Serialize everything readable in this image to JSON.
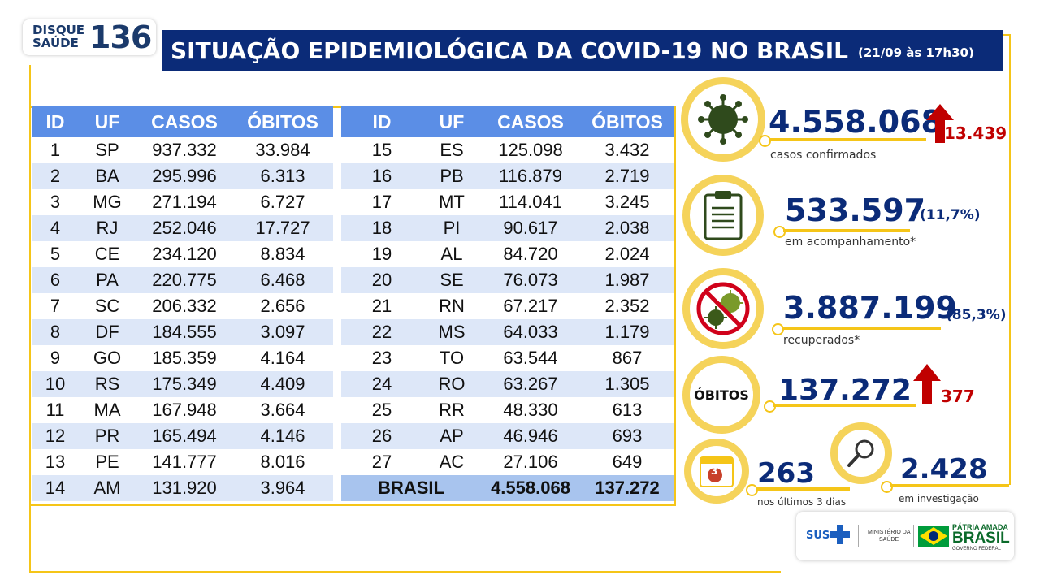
{
  "header": {
    "disque_line1": "DISQUE",
    "disque_line2": "SAÚDE",
    "disque_number": "136",
    "title": "SITUAÇÃO EPIDEMIOLÓGICA DA COVID-19 NO BRASIL",
    "date": "(21/09 às 17h30)"
  },
  "table": {
    "headers": [
      "ID",
      "UF",
      "CASOS",
      "ÓBITOS"
    ],
    "left_rows": [
      [
        "1",
        "SP",
        "937.332",
        "33.984"
      ],
      [
        "2",
        "BA",
        "295.996",
        "6.313"
      ],
      [
        "3",
        "MG",
        "271.194",
        "6.727"
      ],
      [
        "4",
        "RJ",
        "252.046",
        "17.727"
      ],
      [
        "5",
        "CE",
        "234.120",
        "8.834"
      ],
      [
        "6",
        "PA",
        "220.775",
        "6.468"
      ],
      [
        "7",
        "SC",
        "206.332",
        "2.656"
      ],
      [
        "8",
        "DF",
        "184.555",
        "3.097"
      ],
      [
        "9",
        "GO",
        "185.359",
        "4.164"
      ],
      [
        "10",
        "RS",
        "175.349",
        "4.409"
      ],
      [
        "11",
        "MA",
        "167.948",
        "3.664"
      ],
      [
        "12",
        "PR",
        "165.494",
        "4.146"
      ],
      [
        "13",
        "PE",
        "141.777",
        "8.016"
      ],
      [
        "14",
        "AM",
        "131.920",
        "3.964"
      ]
    ],
    "right_rows": [
      [
        "15",
        "ES",
        "125.098",
        "3.432"
      ],
      [
        "16",
        "PB",
        "116.879",
        "2.719"
      ],
      [
        "17",
        "MT",
        "114.041",
        "3.245"
      ],
      [
        "18",
        "PI",
        "90.617",
        "2.038"
      ],
      [
        "19",
        "AL",
        "84.720",
        "2.024"
      ],
      [
        "20",
        "SE",
        "76.073",
        "1.987"
      ],
      [
        "21",
        "RN",
        "67.217",
        "2.352"
      ],
      [
        "22",
        "MS",
        "64.033",
        "1.179"
      ],
      [
        "23",
        "TO",
        "63.544",
        "867"
      ],
      [
        "24",
        "RO",
        "63.267",
        "1.305"
      ],
      [
        "25",
        "RR",
        "48.330",
        "613"
      ],
      [
        "26",
        "AP",
        "46.946",
        "693"
      ],
      [
        "27",
        "AC",
        "27.106",
        "649"
      ]
    ],
    "total": {
      "label": "BRASIL",
      "casos": "4.558.068",
      "obitos": "137.272"
    }
  },
  "stats": {
    "confirmed": {
      "value": "4.558.068",
      "increase": "13.439",
      "label": "casos confirmados"
    },
    "monitoring": {
      "value": "533.597",
      "pct": "(11,7%)",
      "label": "em acompanhamento*"
    },
    "recovered": {
      "value": "3.887.199",
      "pct": "(85,3%)",
      "label": "recuperados*"
    },
    "deaths": {
      "badge": "ÓBITOS",
      "value": "137.272",
      "increase": "377"
    },
    "recent": {
      "value": "263",
      "label": "nos últimos 3 dias",
      "calendar_number": "3"
    },
    "investigation": {
      "value": "2.428",
      "label": "em investigação"
    }
  },
  "footer": {
    "sus": "SUS",
    "ministry_line1": "MINISTÉRIO DA",
    "ministry_line2": "SAÚDE",
    "patria": "PÁTRIA AMADA",
    "brasil": "BRASIL",
    "governo": "GOVERNO FEDERAL"
  },
  "colors": {
    "navy": "#0b2b78",
    "yellow": "#f5c518",
    "header_blue": "#5b8ee6",
    "red": "#c00000"
  }
}
